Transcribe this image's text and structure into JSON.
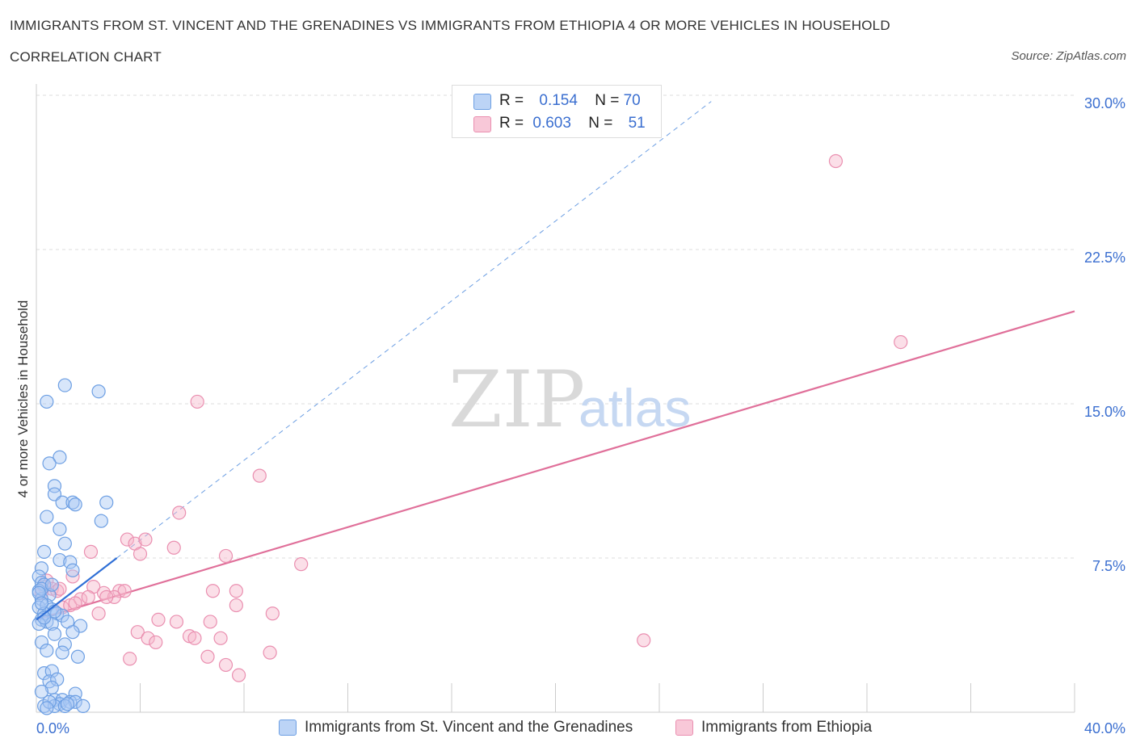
{
  "title": "IMMIGRANTS FROM ST. VINCENT AND THE GRENADINES VS IMMIGRANTS FROM ETHIOPIA 4 OR MORE VEHICLES IN HOUSEHOLD",
  "subtitle": "CORRELATION CHART",
  "source": "Source: ZipAtlas.com",
  "watermark": {
    "zip": "ZIP",
    "atlas": "atlas"
  },
  "legend": {
    "r_label": "R =",
    "n_label": "N =",
    "series1": {
      "r": "0.154",
      "n": "70"
    },
    "series2": {
      "r": "0.603",
      "n": "51"
    }
  },
  "colors": {
    "blue_fill": "#a9c8f3",
    "blue_stroke": "#6d9fe3",
    "blue_line": "#2f6fd6",
    "pink_fill": "#f6b8cd",
    "pink_stroke": "#ea8fb0",
    "pink_line": "#e0709a",
    "grid": "#dddddd",
    "axis_text": "#3b6fd0"
  },
  "chart_data": {
    "type": "scatter",
    "title": "IMMIGRANTS FROM ST. VINCENT AND THE GRENADINES VS IMMIGRANTS FROM ETHIOPIA 4 OR MORE VEHICLES IN HOUSEHOLD",
    "xlabel": "",
    "ylabel": "4 or more Vehicles in Household",
    "xlim": [
      0,
      40
    ],
    "ylim": [
      0,
      30
    ],
    "x_ticks": [
      "0.0%",
      "40.0%"
    ],
    "y_ticks": [
      {
        "value": 7.5,
        "label": "7.5%"
      },
      {
        "value": 15,
        "label": "15.0%"
      },
      {
        "value": 22.5,
        "label": "22.5%"
      },
      {
        "value": 30,
        "label": "30.0%"
      }
    ],
    "x_minor_ticks": [
      0,
      4,
      8,
      12,
      16,
      20,
      24,
      28,
      32,
      36,
      40
    ],
    "series": [
      {
        "name": "Immigrants from St. Vincent and the Grenadines",
        "color": "blue",
        "trend": {
          "x1": 0,
          "y1": 4.5,
          "x2": 3.1,
          "y2": 7.5,
          "dash_to_x": 26,
          "dash_to_y": 29.7
        },
        "points": [
          [
            1.1,
            15.9
          ],
          [
            2.4,
            15.6
          ],
          [
            0.4,
            15.1
          ],
          [
            0.9,
            12.4
          ],
          [
            0.5,
            12.1
          ],
          [
            0.7,
            11.0
          ],
          [
            0.7,
            10.6
          ],
          [
            1.0,
            10.2
          ],
          [
            1.4,
            10.2
          ],
          [
            1.5,
            10.1
          ],
          [
            2.7,
            10.2
          ],
          [
            0.4,
            9.5
          ],
          [
            2.5,
            9.3
          ],
          [
            0.9,
            8.9
          ],
          [
            1.1,
            8.2
          ],
          [
            0.3,
            7.8
          ],
          [
            0.9,
            7.4
          ],
          [
            1.3,
            7.3
          ],
          [
            1.4,
            6.9
          ],
          [
            0.2,
            7.0
          ],
          [
            0.1,
            6.6
          ],
          [
            0.2,
            6.3
          ],
          [
            0.3,
            6.2
          ],
          [
            0.1,
            5.9
          ],
          [
            0.5,
            5.7
          ],
          [
            0.2,
            5.5
          ],
          [
            0.1,
            5.1
          ],
          [
            0.4,
            5.2
          ],
          [
            0.6,
            5.0
          ],
          [
            0.3,
            4.8
          ],
          [
            0.8,
            4.8
          ],
          [
            1.0,
            4.7
          ],
          [
            0.2,
            4.5
          ],
          [
            0.4,
            4.4
          ],
          [
            0.1,
            4.3
          ],
          [
            0.6,
            4.3
          ],
          [
            1.2,
            4.4
          ],
          [
            1.7,
            4.2
          ],
          [
            0.7,
            3.8
          ],
          [
            1.4,
            3.9
          ],
          [
            0.2,
            3.4
          ],
          [
            1.1,
            3.3
          ],
          [
            0.4,
            3.0
          ],
          [
            1.0,
            2.9
          ],
          [
            1.6,
            2.7
          ],
          [
            0.3,
            1.9
          ],
          [
            0.6,
            2.0
          ],
          [
            0.5,
            1.5
          ],
          [
            0.8,
            1.6
          ],
          [
            0.6,
            1.2
          ],
          [
            0.2,
            1.0
          ],
          [
            1.5,
            0.9
          ],
          [
            0.7,
            0.6
          ],
          [
            1.0,
            0.6
          ],
          [
            0.9,
            0.4
          ],
          [
            1.3,
            0.5
          ],
          [
            1.5,
            0.5
          ],
          [
            0.3,
            0.3
          ],
          [
            0.7,
            0.3
          ],
          [
            1.1,
            0.3
          ],
          [
            1.8,
            0.3
          ],
          [
            0.5,
            0.5
          ],
          [
            1.2,
            0.4
          ],
          [
            0.4,
            0.2
          ],
          [
            0.2,
            6.0
          ],
          [
            0.1,
            5.8
          ],
          [
            0.2,
            5.3
          ],
          [
            0.7,
            4.9
          ],
          [
            0.6,
            6.2
          ],
          [
            0.3,
            4.6
          ]
        ]
      },
      {
        "name": "Immigrants from Ethiopia",
        "color": "pink",
        "trend": {
          "x1": 0,
          "y1": 4.5,
          "x2": 40,
          "y2": 19.5
        },
        "points": [
          [
            30.8,
            26.8
          ],
          [
            33.3,
            18.0
          ],
          [
            6.2,
            15.1
          ],
          [
            8.6,
            11.5
          ],
          [
            5.5,
            9.7
          ],
          [
            3.5,
            8.4
          ],
          [
            3.8,
            8.2
          ],
          [
            4.2,
            8.4
          ],
          [
            5.3,
            8.0
          ],
          [
            4.0,
            7.7
          ],
          [
            2.1,
            7.8
          ],
          [
            7.3,
            7.6
          ],
          [
            10.2,
            7.2
          ],
          [
            0.4,
            6.4
          ],
          [
            0.3,
            6.1
          ],
          [
            0.6,
            6.0
          ],
          [
            0.2,
            5.8
          ],
          [
            0.8,
            5.9
          ],
          [
            1.4,
            6.6
          ],
          [
            2.2,
            6.1
          ],
          [
            2.6,
            5.8
          ],
          [
            3.2,
            5.9
          ],
          [
            3.4,
            5.9
          ],
          [
            3.0,
            5.6
          ],
          [
            2.7,
            5.6
          ],
          [
            6.8,
            5.9
          ],
          [
            7.7,
            5.9
          ],
          [
            1.0,
            5.1
          ],
          [
            1.3,
            5.2
          ],
          [
            1.7,
            5.5
          ],
          [
            2.4,
            4.8
          ],
          [
            7.7,
            5.2
          ],
          [
            9.1,
            4.8
          ],
          [
            4.7,
            4.5
          ],
          [
            5.4,
            4.4
          ],
          [
            6.7,
            4.4
          ],
          [
            3.9,
            3.9
          ],
          [
            4.3,
            3.6
          ],
          [
            4.6,
            3.4
          ],
          [
            5.9,
            3.7
          ],
          [
            6.1,
            3.6
          ],
          [
            7.1,
            3.6
          ],
          [
            9.0,
            2.9
          ],
          [
            3.6,
            2.6
          ],
          [
            6.6,
            2.7
          ],
          [
            7.3,
            2.3
          ],
          [
            7.8,
            1.8
          ],
          [
            23.4,
            3.5
          ],
          [
            1.5,
            5.3
          ],
          [
            2.0,
            5.6
          ],
          [
            0.9,
            6.0
          ]
        ]
      }
    ]
  }
}
